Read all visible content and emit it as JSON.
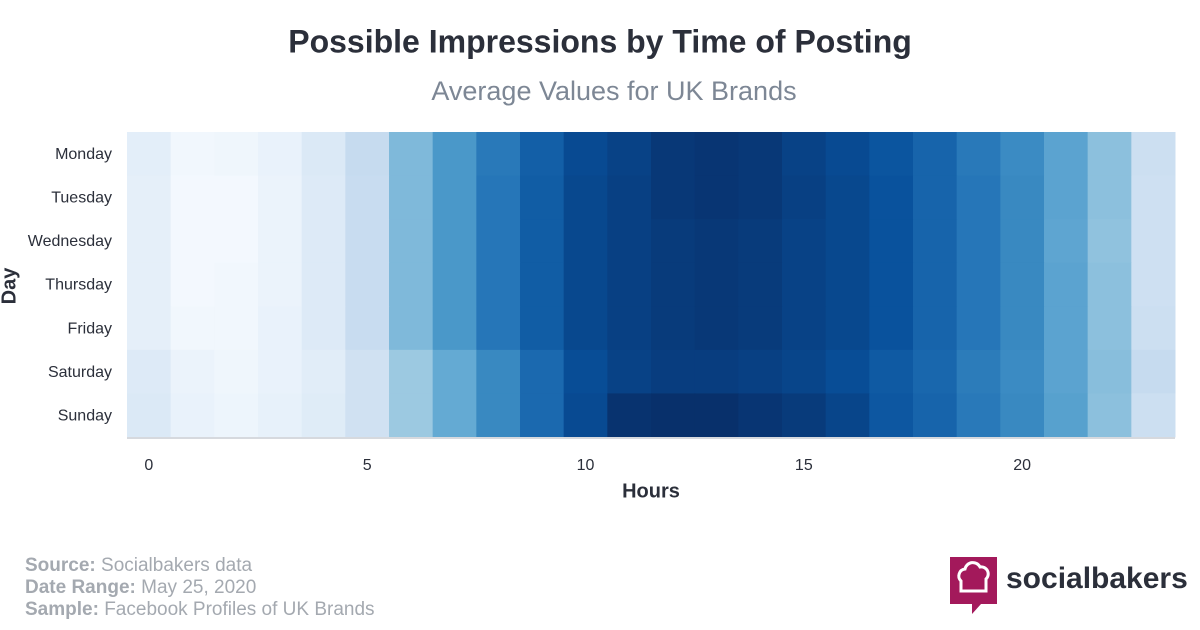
{
  "chart_data": {
    "type": "heatmap",
    "title": "Possible Impressions by Time of Posting",
    "subtitle": "Average Values for UK Brands",
    "x_label": "Hours",
    "y_label": "Day",
    "x": [
      0,
      1,
      2,
      3,
      4,
      5,
      6,
      7,
      8,
      9,
      10,
      11,
      12,
      13,
      14,
      15,
      16,
      17,
      18,
      19,
      20,
      21,
      22,
      23
    ],
    "categories": [
      "Monday",
      "Tuesday",
      "Wednesday",
      "Thursday",
      "Friday",
      "Saturday",
      "Sunday"
    ],
    "xlim": [
      -0.5,
      23.5
    ],
    "xticks": [
      0,
      5,
      10,
      15,
      20
    ],
    "zlim": [
      0,
      100
    ],
    "colorscale": [
      "#f7fbff",
      "#deebf7",
      "#c6dbef",
      "#9ecae1",
      "#6baed6",
      "#4292c6",
      "#2171b5",
      "#08519c",
      "#08306b"
    ],
    "values": [
      [
        10,
        3,
        4,
        7,
        14,
        25,
        45,
        60,
        72,
        82,
        90,
        93,
        97,
        98,
        97,
        93,
        90,
        86,
        80,
        72,
        65,
        55,
        42,
        22
      ],
      [
        9,
        2,
        2,
        6,
        13,
        24,
        45,
        60,
        73,
        83,
        91,
        94,
        97,
        98,
        97,
        94,
        91,
        87,
        80,
        73,
        66,
        55,
        42,
        21
      ],
      [
        9,
        2,
        2,
        6,
        13,
        24,
        45,
        60,
        73,
        83,
        91,
        94,
        96,
        97,
        96,
        93,
        91,
        87,
        80,
        73,
        66,
        54,
        41,
        21
      ],
      [
        9,
        2,
        3,
        6,
        13,
        24,
        45,
        60,
        73,
        83,
        91,
        94,
        96,
        97,
        96,
        93,
        91,
        87,
        80,
        73,
        66,
        55,
        42,
        21
      ],
      [
        9,
        3,
        3,
        7,
        13,
        24,
        45,
        60,
        73,
        83,
        91,
        94,
        96,
        97,
        96,
        93,
        91,
        87,
        80,
        73,
        66,
        55,
        42,
        22
      ],
      [
        13,
        6,
        4,
        7,
        11,
        20,
        38,
        52,
        66,
        78,
        89,
        93,
        95,
        95,
        94,
        92,
        89,
        84,
        79,
        71,
        65,
        55,
        43,
        25
      ],
      [
        14,
        7,
        5,
        8,
        12,
        20,
        38,
        52,
        66,
        78,
        90,
        99,
        100,
        100,
        98,
        96,
        92,
        85,
        80,
        72,
        66,
        56,
        42,
        22
      ]
    ]
  },
  "footer": {
    "source_label": "Source:",
    "source": "Socialbakers data",
    "date_label": "Date Range:",
    "date": "May 25, 2020",
    "sample_label": "Sample:",
    "sample": "Facebook Profiles of UK Brands",
    "brand": "socialbakers"
  }
}
